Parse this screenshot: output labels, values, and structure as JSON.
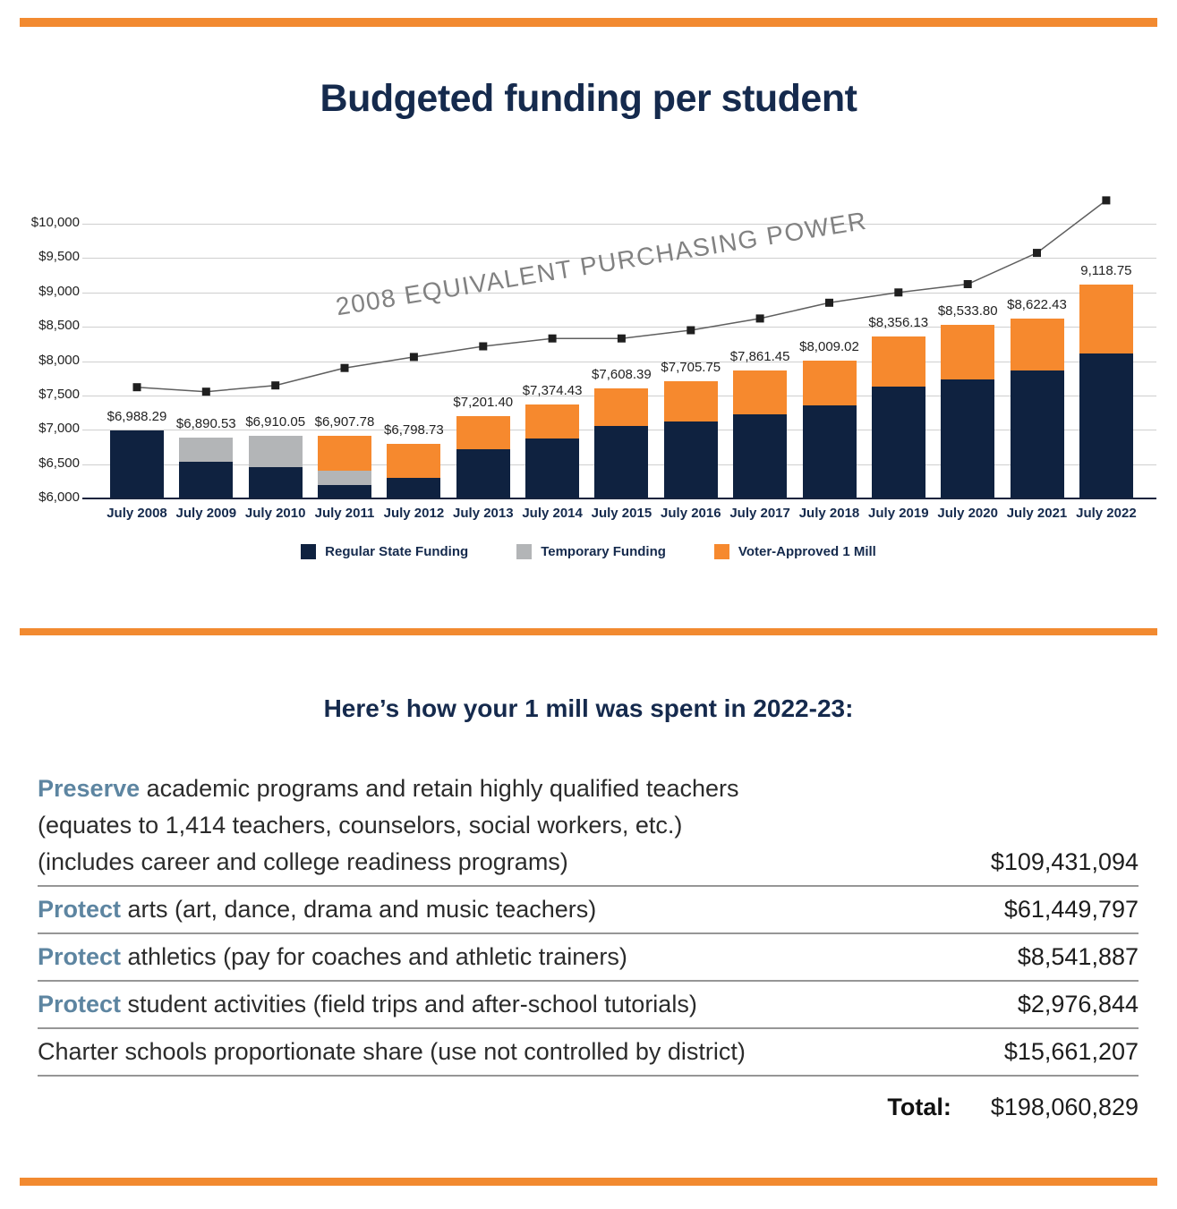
{
  "page": {
    "title": "Budgeted funding per student",
    "colors": {
      "accent_orange": "#f28a30",
      "navy": "#152a4d",
      "steel_blue": "#5d85a1",
      "grid_gray": "#cfcfcf",
      "line_gray": "#5f5f5f"
    }
  },
  "chart_data": {
    "type": "bar",
    "title": "Budgeted funding per student",
    "categories": [
      "July 2008",
      "July 2009",
      "July 2010",
      "July 2011",
      "July 2012",
      "July 2013",
      "July 2014",
      "July 2015",
      "July 2016",
      "July 2017",
      "July 2018",
      "July 2019",
      "July 2020",
      "July 2021",
      "July 2022"
    ],
    "series": [
      {
        "name": "Regular State Funding",
        "color": "#0f2240",
        "values": [
          6988.29,
          6530,
          6460,
          6190,
          6300,
          6715,
          6870,
          7050,
          7120,
          7220,
          7350,
          7625,
          7730,
          7860,
          8105
        ]
      },
      {
        "name": "Temporary Funding",
        "color": "#b3b5b7",
        "values": [
          0,
          360.53,
          450.05,
          213,
          0,
          0,
          0,
          0,
          0,
          0,
          0,
          0,
          0,
          0,
          0
        ]
      },
      {
        "name": "Voter-Approved 1 Mill",
        "color": "#f6892e",
        "values": [
          0,
          0,
          0,
          504.78,
          498.73,
          486.4,
          504.43,
          558.39,
          585.75,
          641.45,
          659.02,
          731.13,
          803.8,
          762.43,
          1013.75
        ]
      }
    ],
    "bar_total_labels": [
      "$6,988.29",
      "$6,890.53",
      "$6,910.05",
      "$6,907.78",
      "$6,798.73",
      "$7,201.40",
      "$7,374.43",
      "$7,608.39",
      "$7,705.75",
      "$7,861.45",
      "$8,009.02",
      "$8,356.13",
      "$8,533.80",
      "$8,622.43",
      "9,118.75"
    ],
    "line_series": {
      "name": "2008 Equivalent Purchasing Power",
      "color": "#5f5f5f",
      "marker_color": "#1f1f1f",
      "values": [
        7620,
        7555,
        7645,
        7900,
        8060,
        8215,
        8330,
        8330,
        8450,
        8620,
        8850,
        9000,
        9120,
        9575,
        10340
      ]
    },
    "watermark": "2008 EQUIVALENT PURCHASING POWER",
    "y_ticks": [
      "$6,000",
      "$6,500",
      "$7,000",
      "$7,500",
      "$8,000",
      "$8,500",
      "$9,000",
      "$9,500",
      "$10,000"
    ],
    "y_min": 6000,
    "y_max": 10000,
    "y_step": 500,
    "grid": true,
    "legend_position": "bottom"
  },
  "spending": {
    "heading": "Here’s how your 1 mill was spent in 2022-23:",
    "rows": [
      {
        "keyword": "Preserve",
        "lines": [
          "academic programs and retain highly qualified teachers",
          "(equates to 1,414 teachers, counselors, social workers, etc.)",
          "(includes career and college readiness programs)"
        ],
        "amount": "$109,431,094"
      },
      {
        "keyword": "Protect",
        "lines": [
          "arts (art, dance, drama and music teachers)"
        ],
        "amount": "$61,449,797"
      },
      {
        "keyword": "Protect",
        "lines": [
          "athletics (pay for coaches and athletic trainers)"
        ],
        "amount": "$8,541,887"
      },
      {
        "keyword": "Protect",
        "lines": [
          "student activities (field trips and after-school tutorials)"
        ],
        "amount": "$2,976,844"
      },
      {
        "keyword": "",
        "lines": [
          "Charter schools proportionate share (use not controlled by district)"
        ],
        "amount": "$15,661,207"
      }
    ],
    "total_label": "Total:",
    "total_amount": "$198,060,829"
  }
}
